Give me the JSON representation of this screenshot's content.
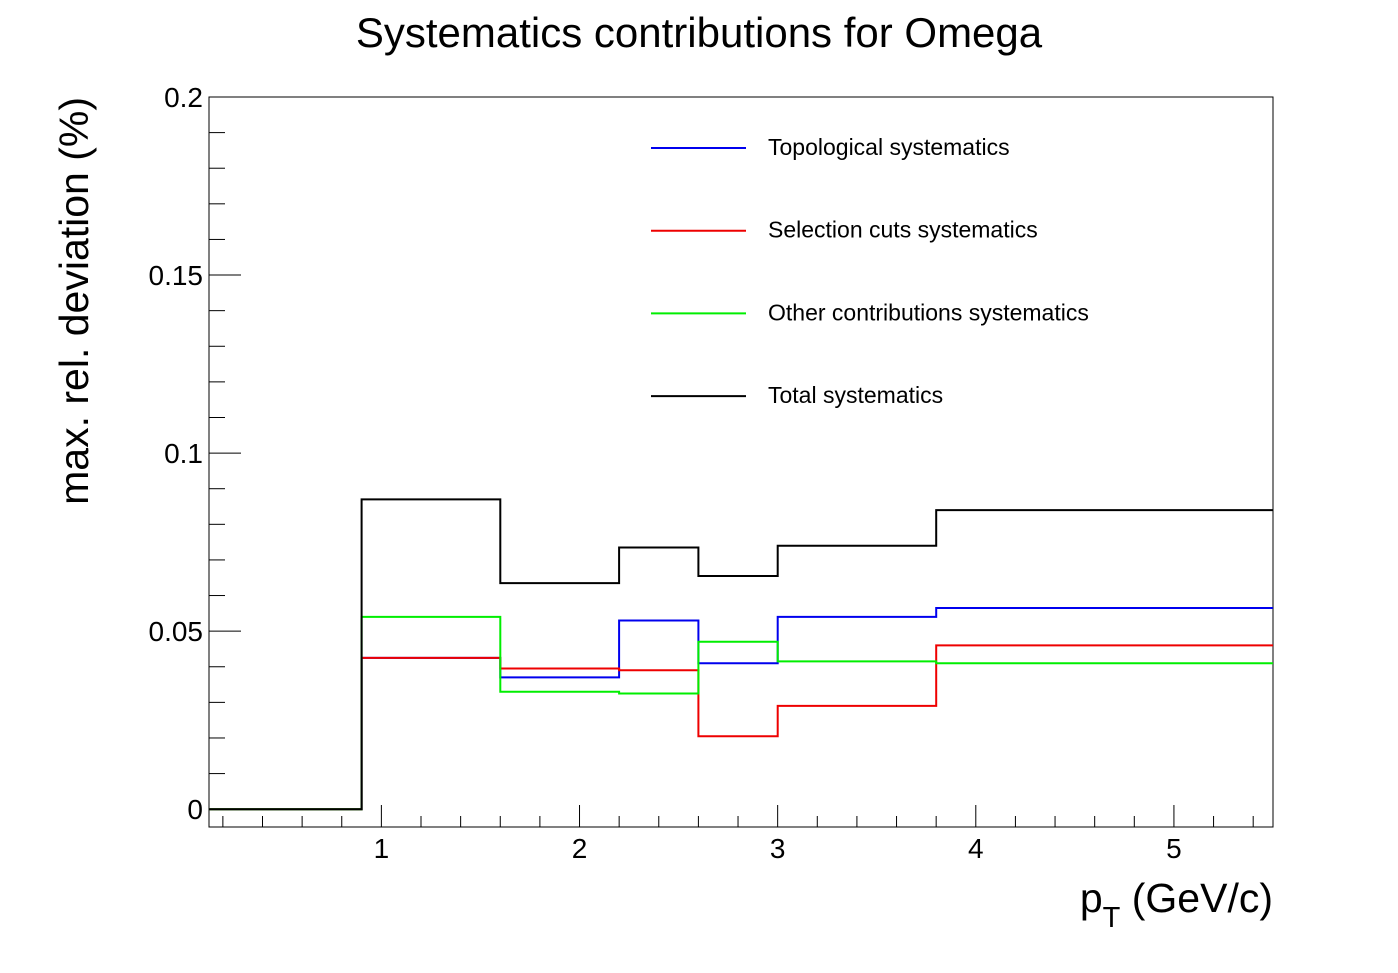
{
  "chart_data": {
    "type": "line",
    "step": true,
    "title": "Systematics contributions for Omega",
    "xlabel_main": "p",
    "xlabel_sub": "T",
    "xlabel_rest": " (GeV/c)",
    "ylabel": "max. rel. deviation (%)",
    "xlim": [
      0.13,
      5.5
    ],
    "ylim": [
      -0.005,
      0.2
    ],
    "x_ticks": [
      1,
      2,
      3,
      4,
      5
    ],
    "x_tick_labels": [
      "1",
      "2",
      "3",
      "4",
      "5"
    ],
    "y_ticks": [
      0,
      0.05,
      0.1,
      0.15,
      0.2
    ],
    "y_tick_labels": [
      "0",
      "0.05",
      "0.1",
      "0.15",
      "0.2"
    ],
    "bin_edges": [
      0.13,
      0.9,
      1.6,
      2.2,
      2.6,
      3.0,
      3.8,
      5.5
    ],
    "grid": false,
    "legend_position": "top-right",
    "series": [
      {
        "name": "Topological systematics",
        "color": "#0000ee",
        "values": [
          0,
          0.0425,
          0.037,
          0.053,
          0.041,
          0.054,
          0.0565
        ]
      },
      {
        "name": "Selection cuts systematics",
        "color": "#ee0000",
        "values": [
          0,
          0.0425,
          0.0395,
          0.039,
          0.0205,
          0.029,
          0.046
        ]
      },
      {
        "name": "Other contributions systematics",
        "color": "#00ee00",
        "values": [
          0,
          0.054,
          0.033,
          0.0325,
          0.047,
          0.0415,
          0.041
        ]
      },
      {
        "name": "Total systematics",
        "color": "#000000",
        "values": [
          0,
          0.087,
          0.0635,
          0.0735,
          0.0655,
          0.074,
          0.084
        ]
      }
    ]
  }
}
